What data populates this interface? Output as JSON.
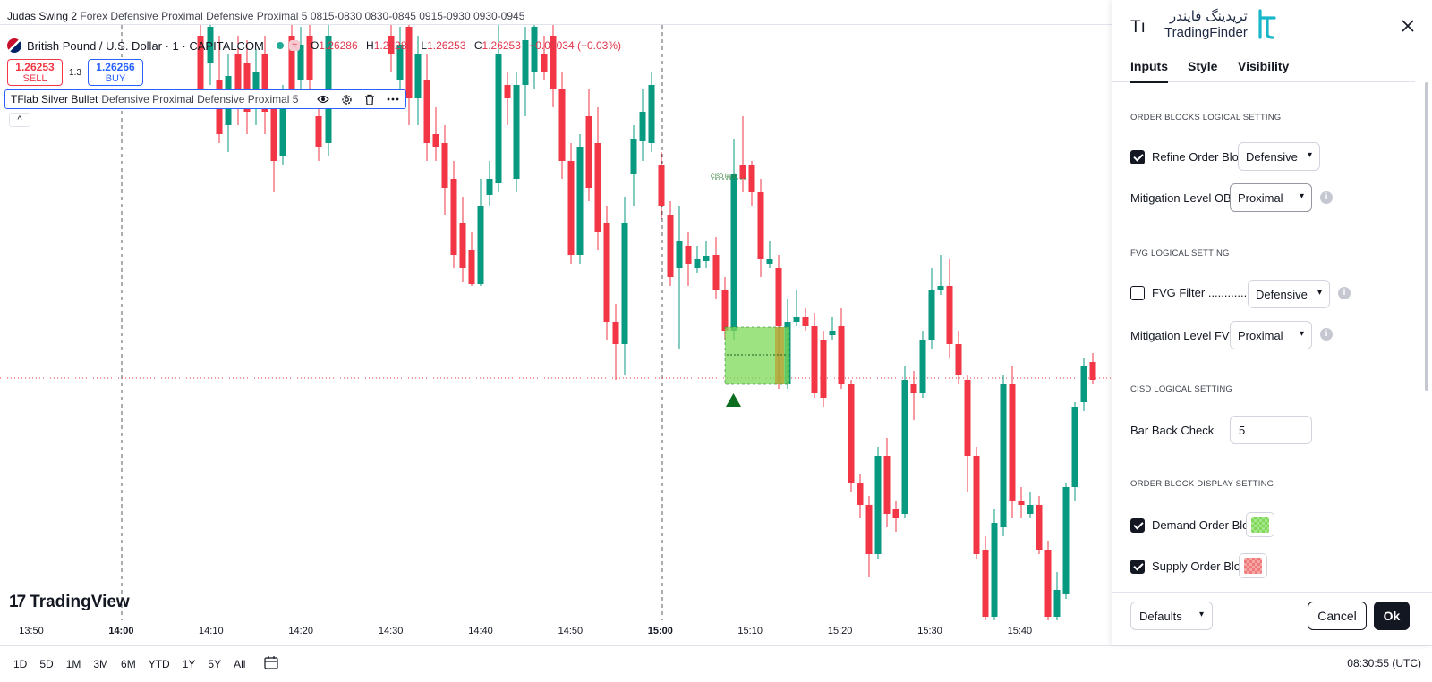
{
  "script_title": {
    "name": "Judas Swing 2",
    "rest": "Forex Defensive Proximal Defensive Proximal 5 0815-0830 0830-0845 0915-0930 0930-0945"
  },
  "legend": {
    "symbol": "British Pound / U.S. Dollar · 1 · CAPITALCOM",
    "wave_icon": "≈",
    "o_label": "O",
    "o_value": "1.26286",
    "h_label": "H",
    "h_value": "1.26286",
    "l_label": "L",
    "l_value": "1.26253",
    "c_label": "C",
    "c_value": "1.26253",
    "change": "−0.00034 (−0.03%)"
  },
  "trade": {
    "sell_price": "1.26253",
    "sell_label": "SELL",
    "spread": "1.3",
    "buy_price": "1.26266",
    "buy_label": "BUY"
  },
  "indicator": {
    "name": "TFlab Silver Bullet",
    "params": "Defensive Proximal Defensive Proximal 5",
    "eye_icon": "eye-icon",
    "settings_icon": "gear-icon",
    "delete_icon": "trash-icon",
    "more_icon": "more-icon",
    "collapse": "^"
  },
  "tv_logo": {
    "mark": "17",
    "text": "TradingView"
  },
  "cisd_label": "CISD level",
  "time_axis": [
    {
      "label": "13:50",
      "bold": false
    },
    {
      "label": "14:00",
      "bold": true
    },
    {
      "label": "14:10",
      "bold": false
    },
    {
      "label": "14:20",
      "bold": false
    },
    {
      "label": "14:30",
      "bold": false
    },
    {
      "label": "14:40",
      "bold": false
    },
    {
      "label": "14:50",
      "bold": false
    },
    {
      "label": "15:00",
      "bold": true
    },
    {
      "label": "15:10",
      "bold": false
    },
    {
      "label": "15:20",
      "bold": false
    },
    {
      "label": "15:30",
      "bold": false
    },
    {
      "label": "15:40",
      "bold": false
    }
  ],
  "ranges": [
    "1D",
    "5D",
    "1M",
    "3M",
    "6M",
    "YTD",
    "1Y",
    "5Y",
    "All"
  ],
  "clock": "08:30:55 (UTC)",
  "panel": {
    "title": "Tı",
    "brand_fa": "تریدینگ فایندر",
    "brand_en": "TradingFinder",
    "tabs": [
      "Inputs",
      "Style",
      "Visibility"
    ],
    "sec_ob_logic": "ORDER BLOCKS LOGICAL SETTING",
    "refine_ob_label": "Refine Order Block",
    "refine_ob_checked": true,
    "refine_ob_value": "Defensive",
    "mitigation_ob_label": "Mitigation Level OB",
    "mitigation_ob_value": "Proximal",
    "sec_fvg_logic": "FVG LOGICAL SETTING",
    "fvg_filter_label": "FVG Filter ............",
    "fvg_filter_checked": false,
    "fvg_filter_value": "Defensive",
    "mitigation_fvg_label": "Mitigation Level FVG",
    "mitigation_fvg_value": "Proximal",
    "sec_cisd_logic": "CISD LOGICAL SETTING",
    "bar_back_label": "Bar Back Check",
    "bar_back_value": "5",
    "sec_ob_display": "ORDER BLOCK DISPLAY SETTING",
    "demand_ob_label": "Demand Order Block",
    "demand_ob_checked": true,
    "demand_color": "#7ed957",
    "supply_ob_label": "Supply Order Block",
    "supply_ob_checked": true,
    "supply_color": "#f07a7a",
    "defaults_label": "Defaults",
    "cancel_label": "Cancel",
    "ok_label": "Ok",
    "info_icon": "i"
  },
  "colors": {
    "bull": "#089981",
    "bear": "#f23645",
    "demand_zone": "#7ed957",
    "triangle": "#0b6e1e"
  }
}
